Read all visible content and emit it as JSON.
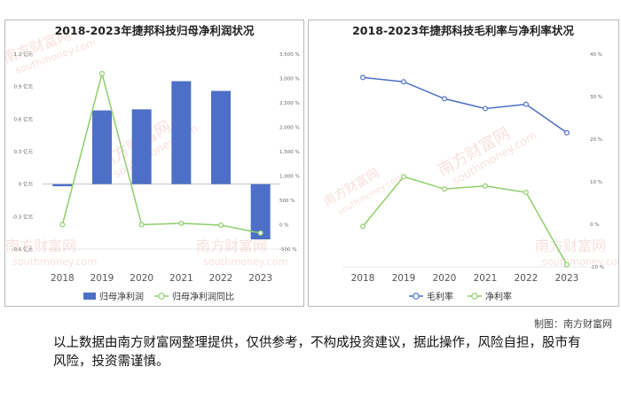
{
  "source_credit": "制图：南方财富网",
  "disclaimer": "以上数据由南方财富网整理提供，仅供参考，不构成投资建议，据此操作，风险自担，股市有风险，投资需谨慎。",
  "watermark": {
    "cn": "南方财富网",
    "en": "southmoney.com"
  },
  "colors": {
    "bar": "#4e6fc7",
    "green": "#8fce6b",
    "blue": "#4e6fc7",
    "axis": "#999999"
  },
  "chart_data": [
    {
      "type": "bar",
      "title": "2018-2023年捷邦科技归母净利润状况",
      "categories": [
        "2018",
        "2019",
        "2020",
        "2021",
        "2022",
        "2023"
      ],
      "left_ticks": [
        "1.2 亿元",
        "0.9 亿元",
        "0.6 亿元",
        "0.3 亿元",
        "0 亿元",
        "-0.3 亿元",
        "-0.6 亿元"
      ],
      "right_ticks": [
        "3,500 %",
        "3,000 %",
        "2,500 %",
        "2,000 %",
        "1,500 %",
        "1,000 %",
        "500 %",
        "0 %",
        "-500 %"
      ],
      "left_ylim": [
        -0.6,
        1.2
      ],
      "right_ylim": [
        -500,
        3500
      ],
      "series": [
        {
          "name": "归母净利润",
          "kind": "bar",
          "axis": "left",
          "values": [
            -0.02,
            0.68,
            0.69,
            0.95,
            0.86,
            -0.51
          ]
        },
        {
          "name": "归母净利润同比",
          "kind": "line",
          "axis": "right",
          "values": [
            0,
            3100,
            0,
            30,
            -10,
            -170
          ]
        }
      ]
    },
    {
      "type": "line",
      "title": "2018-2023年捷邦科技毛利率与净利率状况",
      "categories": [
        "2018",
        "2019",
        "2020",
        "2021",
        "2022",
        "2023"
      ],
      "ticks": [
        "40 %",
        "30 %",
        "20 %",
        "10 %",
        "0 %",
        "-10 %"
      ],
      "ylim": [
        -10,
        40
      ],
      "series": [
        {
          "name": "毛利率",
          "values": [
            34.5,
            33.5,
            29.5,
            27.2,
            28.2,
            21.5
          ]
        },
        {
          "name": "净利率",
          "values": [
            -0.5,
            11.2,
            8.3,
            9.0,
            7.5,
            -9.5
          ]
        }
      ]
    }
  ]
}
